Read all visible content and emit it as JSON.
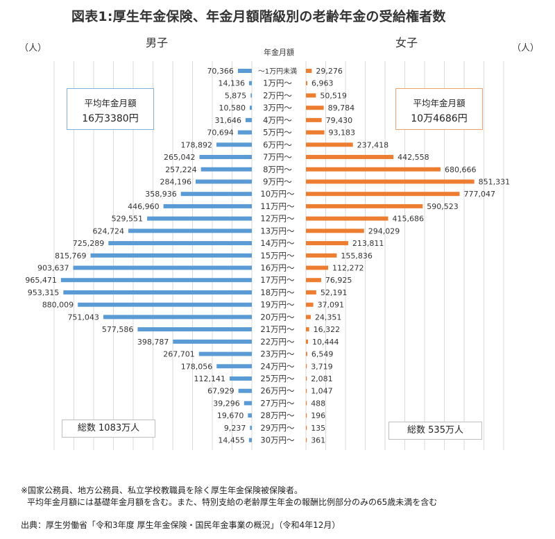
{
  "title": "図表1:厚生年金保険、年金月額階級別の老齢年金の受給権者数",
  "labels": {
    "unit_left": "（人）",
    "unit_right": "（人）",
    "male": "男子",
    "female": "女子",
    "center_header": "年金月額"
  },
  "boxes": {
    "male_avg_label": "平均年金月額",
    "male_avg_value": "16万3380円",
    "female_avg_label": "平均年金月額",
    "female_avg_value": "10万4686円",
    "male_total": "総数 1083万人",
    "female_total": "総数 535万人"
  },
  "notes": {
    "line1": "※国家公務員、地方公務員、私立学校教職員を除く厚生年金保険被保険者。",
    "line2": "平均年金月額には基礎年金月額を含む。また、特別支給の老齢厚生年金の報酬比例部分のみの65歳未満を含む",
    "source": "出典：厚生労働省「令和3年度 厚生年金保険・国民年金事業の概況」（令和4年12月）"
  },
  "colors": {
    "male": "#5b9bd5",
    "female": "#ed7d31",
    "grid": "#d9d9d9"
  },
  "chart_data": {
    "type": "bar",
    "orientation": "horizontal-butterfly",
    "categories": [
      "～1万円未満",
      "1万円～",
      "2万円～",
      "3万円～",
      "4万円～",
      "5万円～",
      "6万円～",
      "7万円～",
      "8万円～",
      "9万円～",
      "10万円～",
      "11万円～",
      "12万円～",
      "13万円～",
      "14万円～",
      "15万円～",
      "16万円～",
      "17万円～",
      "18万円～",
      "19万円～",
      "20万円～",
      "21万円～",
      "22万円～",
      "23万円～",
      "24万円～",
      "25万円～",
      "26万円～",
      "27万円～",
      "28万円～",
      "29万円～",
      "30万円～"
    ],
    "series": [
      {
        "name": "男子",
        "values": [
          70366,
          14136,
          5875,
          10580,
          31646,
          70694,
          178892,
          265042,
          257224,
          284196,
          358936,
          446960,
          529551,
          624724,
          725289,
          815769,
          903637,
          965471,
          953315,
          880009,
          751043,
          577586,
          398787,
          267701,
          178056,
          112141,
          67929,
          39296,
          19670,
          9237,
          14455
        ]
      },
      {
        "name": "女子",
        "values": [
          29276,
          6963,
          50519,
          89784,
          79430,
          93183,
          237418,
          442558,
          680666,
          851331,
          777047,
          590523,
          415686,
          294029,
          213811,
          155836,
          112272,
          76925,
          52191,
          37091,
          24351,
          16322,
          10444,
          6549,
          3719,
          2081,
          1047,
          488,
          196,
          135,
          361
        ]
      }
    ],
    "value_labels_male": [
      "70,366",
      "14,136",
      "5,875",
      "10,580",
      "31,646",
      "70,694",
      "178,892",
      "265,042",
      "257,224",
      "284,196",
      "358,936",
      "446,960",
      "529,551",
      "624,724",
      "725,289",
      "815,769",
      "903,637",
      "965,471",
      "953,315",
      "880,009",
      "751,043",
      "577,586",
      "398,787",
      "267,701",
      "178,056",
      "112,141",
      "67,929",
      "39,296",
      "19,670",
      "9,237",
      "14,455"
    ],
    "value_labels_female": [
      "29,276",
      "6,963",
      "50,519",
      "89,784",
      "79,430",
      "93,183",
      "237,418",
      "442,558",
      "680,666",
      "851,331",
      "777,047",
      "590,523",
      "415,686",
      "294,029",
      "213,811",
      "155,836",
      "112,272",
      "76,925",
      "52,191",
      "37,091",
      "24,351",
      "16,322",
      "10,444",
      "6,549",
      "3,719",
      "2,081",
      "1,047",
      "488",
      "196",
      "135",
      "361"
    ],
    "xlim": [
      0,
      1000000
    ],
    "grid": true
  }
}
